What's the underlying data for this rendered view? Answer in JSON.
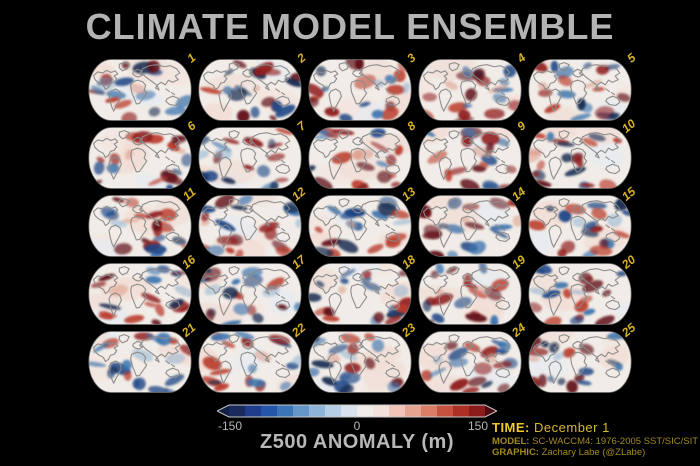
{
  "title": "CLIMATE MODEL ENSEMBLE",
  "ensemble": {
    "members": [
      "1",
      "2",
      "3",
      "4",
      "5",
      "6",
      "7",
      "8",
      "9",
      "10",
      "11",
      "12",
      "13",
      "14",
      "15",
      "16",
      "17",
      "18",
      "19",
      "20",
      "21",
      "22",
      "23",
      "24",
      "25"
    ]
  },
  "colorbar": {
    "ticks": [
      "-150",
      "0",
      "150"
    ],
    "label": "Z500 ANOMALY (m)",
    "segment_colors": [
      "#1b2a5c",
      "#1f3d8c",
      "#2356a8",
      "#3c74b8",
      "#6496c8",
      "#8db4d9",
      "#b5cde5",
      "#d9e2ec",
      "#f0ece9",
      "#f3e0da",
      "#efc5b8",
      "#e6a38f",
      "#d97f67",
      "#c6523f",
      "#ad2f26",
      "#8c1b1c"
    ],
    "left_arrow_color": "#131f45",
    "right_arrow_color": "#4f0b12",
    "outline_color": "#c9c9c9"
  },
  "footer": {
    "time_label": "TIME:",
    "time_value": "December 1",
    "model_label": "MODEL:",
    "model_value": "SC-WACCM4: 1976-2005 SST/SIC/SIT",
    "graphic_label": "GRAPHIC:",
    "graphic_value": "Zachary Labe (@ZLabe)"
  },
  "colors": {
    "background": "#000000",
    "title_text": "#b3b3b3",
    "member_number": "#d8b225",
    "time_text": "#f0ca2a",
    "meta_text": "#a28a20",
    "tick_text": "#b8b8b8",
    "coastline": "#8a8a8a",
    "map_base": "#f1ece7"
  },
  "chart_data": {
    "type": "heatmap",
    "title": "CLIMATE MODEL ENSEMBLE",
    "description": "5x5 grid of 25 climate model ensemble member global maps of 500 hPa geopotential height anomalies (diverging blue-white-red colormap, gray coastlines, Robinson-style projection)",
    "panels": 25,
    "grid_rows": 5,
    "grid_cols": 5,
    "panel_labels": [
      "1",
      "2",
      "3",
      "4",
      "5",
      "6",
      "7",
      "8",
      "9",
      "10",
      "11",
      "12",
      "13",
      "14",
      "15",
      "16",
      "17",
      "18",
      "19",
      "20",
      "21",
      "22",
      "23",
      "24",
      "25"
    ],
    "variable": "Z500 ANOMALY (m)",
    "colorbar_range": [
      -150,
      150
    ],
    "colorbar_ticks": [
      -150,
      0,
      150
    ],
    "colormap": "diverging blue-white-red, discrete segments with arrow ends",
    "time": "December 1",
    "model": "SC-WACCM4: 1976-2005 SST/SIC/SIT",
    "credit": "Zachary Labe (@ZLabe)"
  }
}
